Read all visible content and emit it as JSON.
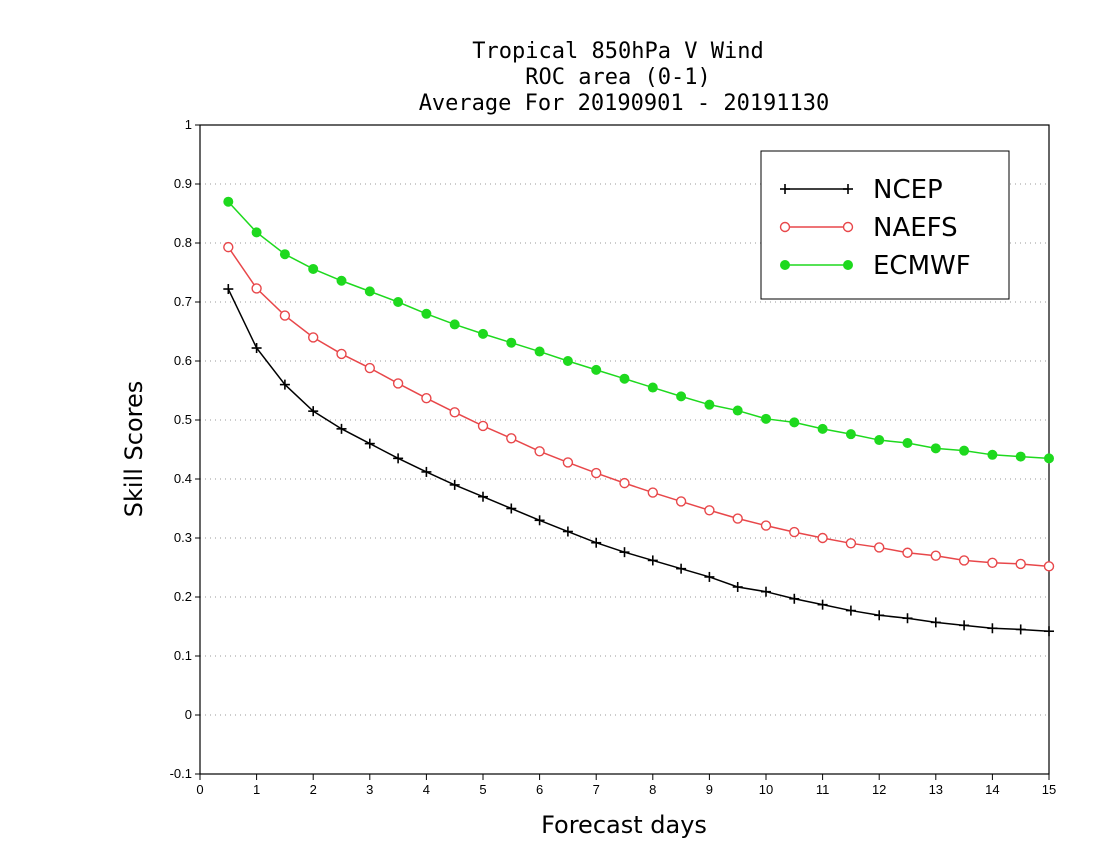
{
  "chart_data": {
    "type": "line",
    "title": [
      "Tropical 850hPa V Wind",
      "ROC area (0-1)",
      "Average For 20190901 - 20191130"
    ],
    "xlabel": "Forecast days",
    "ylabel": "Skill Scores",
    "xlim": [
      0,
      15
    ],
    "ylim": [
      -0.1,
      1
    ],
    "xticks": [
      "0",
      "1",
      "2",
      "3",
      "4",
      "5",
      "6",
      "7",
      "8",
      "9",
      "10",
      "11",
      "12",
      "13",
      "14",
      "15"
    ],
    "yticks": [
      "-0.1",
      "0",
      "0.1",
      "0.2",
      "0.3",
      "0.4",
      "0.5",
      "0.6",
      "0.7",
      "0.8",
      "0.9",
      "1"
    ],
    "grid": "horizontal dotted",
    "legend_position": "top-right",
    "x": [
      0.5,
      1.0,
      1.5,
      2.0,
      2.5,
      3.0,
      3.5,
      4.0,
      4.5,
      5.0,
      5.5,
      6.0,
      6.5,
      7.0,
      7.5,
      8.0,
      8.5,
      9.0,
      9.5,
      10.0,
      10.5,
      11.0,
      11.5,
      12.0,
      12.5,
      13.0,
      13.5,
      14.0,
      14.5,
      15.0
    ],
    "series": [
      {
        "name": "NCEP",
        "color": "#000000",
        "marker": "plus",
        "values": [
          0.722,
          0.622,
          0.56,
          0.515,
          0.485,
          0.46,
          0.435,
          0.412,
          0.39,
          0.37,
          0.35,
          0.33,
          0.311,
          0.292,
          0.276,
          0.262,
          0.248,
          0.234,
          0.217,
          0.209,
          0.197,
          0.187,
          0.177,
          0.169,
          0.164,
          0.157,
          0.152,
          0.147,
          0.145,
          0.142
        ]
      },
      {
        "name": "NAEFS",
        "color": "#e8474a",
        "marker": "open-circle",
        "values": [
          0.793,
          0.723,
          0.677,
          0.64,
          0.612,
          0.588,
          0.562,
          0.537,
          0.513,
          0.49,
          0.469,
          0.447,
          0.428,
          0.41,
          0.393,
          0.377,
          0.362,
          0.347,
          0.333,
          0.321,
          0.31,
          0.3,
          0.291,
          0.284,
          0.275,
          0.27,
          0.262,
          0.258,
          0.256,
          0.252
        ]
      },
      {
        "name": "ECMWF",
        "color": "#1ed91e",
        "marker": "filled-circle",
        "values": [
          0.87,
          0.818,
          0.781,
          0.756,
          0.736,
          0.718,
          0.7,
          0.68,
          0.662,
          0.646,
          0.631,
          0.616,
          0.6,
          0.585,
          0.57,
          0.555,
          0.54,
          0.526,
          0.516,
          0.502,
          0.496,
          0.485,
          0.476,
          0.466,
          0.461,
          0.452,
          0.448,
          0.441,
          0.438,
          0.435
        ]
      }
    ]
  }
}
